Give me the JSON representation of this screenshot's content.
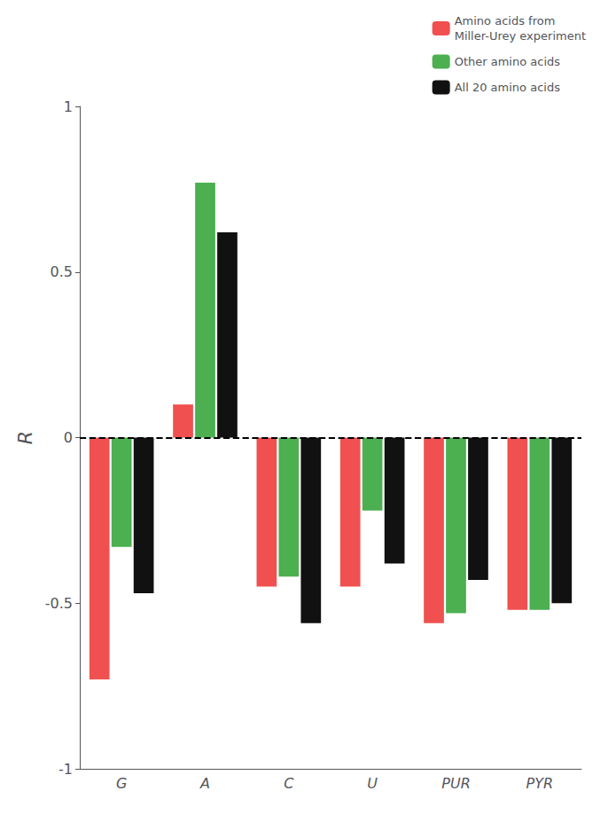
{
  "chart_data": {
    "type": "bar",
    "categories": [
      "G",
      "A",
      "C",
      "U",
      "PUR",
      "PYR"
    ],
    "series": [
      {
        "name": "Amino acids from\nMiller-Urey experiment",
        "color": "#F05050",
        "values": [
          -0.73,
          0.1,
          -0.45,
          -0.45,
          -0.56,
          -0.52
        ]
      },
      {
        "name": "Other amino acids",
        "color": "#4CAF50",
        "values": [
          -0.33,
          0.77,
          -0.42,
          -0.22,
          -0.53,
          -0.52
        ]
      },
      {
        "name": "All 20 amino acids",
        "color": "#111111",
        "values": [
          -0.47,
          0.62,
          -0.56,
          -0.38,
          -0.43,
          -0.5
        ]
      }
    ],
    "ylabel": "R",
    "ylim": [
      -1.0,
      1.0
    ],
    "yticks": [
      -1,
      -0.5,
      0,
      0.5,
      1
    ],
    "grid": false,
    "legend": "upper right",
    "reference_line": {
      "y": 0.0,
      "line_style": "dashed",
      "color": "#000000"
    }
  }
}
